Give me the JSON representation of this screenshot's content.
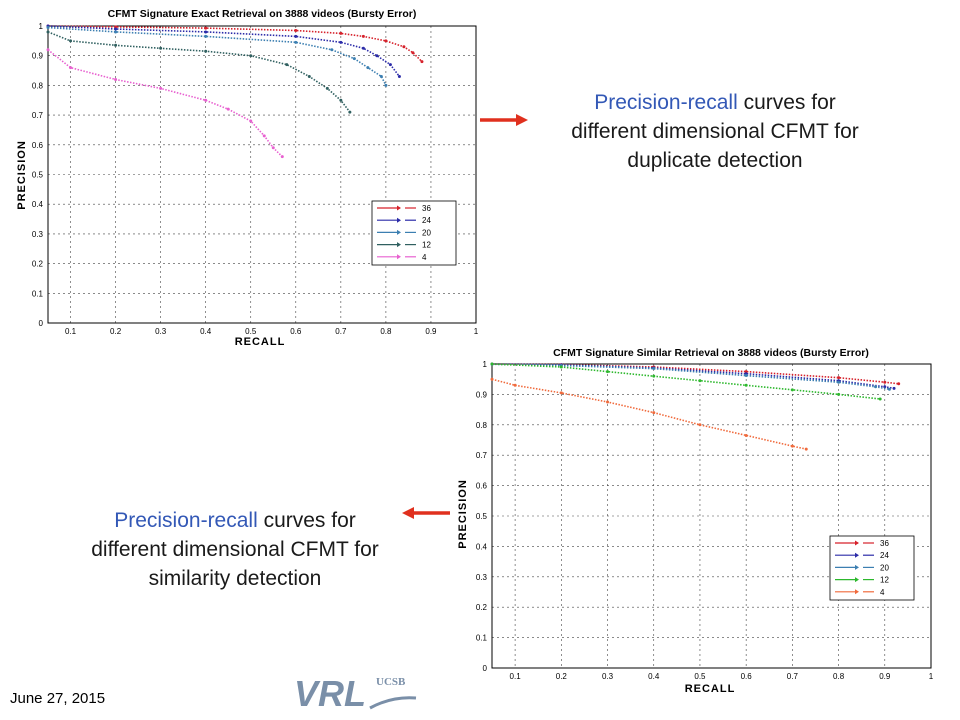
{
  "captions": {
    "top": {
      "highlight": "Precision-recall",
      "line1_rest": " curves for",
      "line2": "different dimensional CFMT for",
      "line3": "duplicate detection"
    },
    "bottom": {
      "highlight": "Precision-recall",
      "line1_rest": " curves for",
      "line2": "different dimensional CFMT for",
      "line3": "similarity detection"
    }
  },
  "footer": {
    "date": "June 27, 2015",
    "logo_main": "VRL",
    "logo_sub": "UCSB"
  },
  "colors": {
    "caption_highlight": "#3358b6",
    "arrow": "#e0301e",
    "logo": "#7a8fa8"
  },
  "chart_data": [
    {
      "type": "line",
      "title": "CFMT Signature Exact Retrieval on 3888 videos (Bursty Error)",
      "xlabel": "RECALL",
      "ylabel": "PRECISION",
      "xlim": [
        0.05,
        1
      ],
      "ylim": [
        0,
        1
      ],
      "xticks": [
        0.1,
        0.2,
        0.3,
        0.4,
        0.5,
        0.6,
        0.7,
        0.8,
        0.9,
        1
      ],
      "yticks": [
        0,
        0.1,
        0.2,
        0.3,
        0.4,
        0.5,
        0.6,
        0.7,
        0.8,
        0.9,
        1
      ],
      "grid": true,
      "legend_position": "lower-right",
      "series": [
        {
          "name": "36",
          "color": "#d6212b",
          "x": [
            0.05,
            0.2,
            0.4,
            0.6,
            0.7,
            0.75,
            0.8,
            0.84,
            0.86,
            0.88
          ],
          "y": [
            1.0,
            0.997,
            0.993,
            0.985,
            0.975,
            0.965,
            0.95,
            0.93,
            0.91,
            0.88
          ]
        },
        {
          "name": "24",
          "color": "#2b2ba8",
          "x": [
            0.05,
            0.2,
            0.4,
            0.6,
            0.7,
            0.75,
            0.78,
            0.81,
            0.83
          ],
          "y": [
            1.0,
            0.99,
            0.98,
            0.965,
            0.945,
            0.925,
            0.9,
            0.87,
            0.83
          ]
        },
        {
          "name": "20",
          "color": "#3c7fb1",
          "x": [
            0.05,
            0.2,
            0.4,
            0.6,
            0.68,
            0.73,
            0.76,
            0.79,
            0.8
          ],
          "y": [
            0.995,
            0.98,
            0.965,
            0.945,
            0.92,
            0.89,
            0.86,
            0.83,
            0.8
          ]
        },
        {
          "name": "12",
          "color": "#306060",
          "x": [
            0.05,
            0.1,
            0.2,
            0.3,
            0.4,
            0.5,
            0.58,
            0.63,
            0.67,
            0.7,
            0.72
          ],
          "y": [
            0.98,
            0.95,
            0.935,
            0.925,
            0.915,
            0.9,
            0.87,
            0.83,
            0.79,
            0.75,
            0.71
          ]
        },
        {
          "name": "4",
          "color": "#e860d0",
          "x": [
            0.05,
            0.1,
            0.2,
            0.3,
            0.4,
            0.45,
            0.5,
            0.53,
            0.55,
            0.57
          ],
          "y": [
            0.92,
            0.86,
            0.82,
            0.79,
            0.75,
            0.72,
            0.68,
            0.63,
            0.59,
            0.56
          ]
        }
      ]
    },
    {
      "type": "line",
      "title": "CFMT Signature Similar Retrieval on 3888 videos (Bursty Error)",
      "xlabel": "RECALL",
      "ylabel": "PRECISION",
      "xlim": [
        0.05,
        1
      ],
      "ylim": [
        0,
        1
      ],
      "xticks": [
        0.1,
        0.2,
        0.3,
        0.4,
        0.5,
        0.6,
        0.7,
        0.8,
        0.9,
        1
      ],
      "yticks": [
        0,
        0.1,
        0.2,
        0.3,
        0.4,
        0.5,
        0.6,
        0.7,
        0.8,
        0.9,
        1
      ],
      "grid": true,
      "legend_position": "lower-right",
      "series": [
        {
          "name": "36",
          "color": "#d6212b",
          "x": [
            0.05,
            0.2,
            0.4,
            0.6,
            0.8,
            0.9,
            0.93
          ],
          "y": [
            1.0,
            0.998,
            0.99,
            0.975,
            0.955,
            0.94,
            0.935
          ]
        },
        {
          "name": "24",
          "color": "#2b2ba8",
          "x": [
            0.05,
            0.2,
            0.4,
            0.6,
            0.8,
            0.9,
            0.92
          ],
          "y": [
            1.0,
            0.997,
            0.987,
            0.968,
            0.945,
            0.925,
            0.92
          ]
        },
        {
          "name": "20",
          "color": "#3c7fb1",
          "x": [
            0.05,
            0.2,
            0.4,
            0.6,
            0.8,
            0.88,
            0.91
          ],
          "y": [
            0.999,
            0.995,
            0.985,
            0.962,
            0.94,
            0.925,
            0.917
          ]
        },
        {
          "name": "12",
          "color": "#2db82d",
          "x": [
            0.05,
            0.2,
            0.3,
            0.4,
            0.5,
            0.6,
            0.7,
            0.8,
            0.89
          ],
          "y": [
            1.0,
            0.99,
            0.975,
            0.96,
            0.945,
            0.93,
            0.915,
            0.9,
            0.885
          ]
        },
        {
          "name": "4",
          "color": "#f06a3c",
          "x": [
            0.05,
            0.1,
            0.2,
            0.3,
            0.4,
            0.5,
            0.6,
            0.7,
            0.73
          ],
          "y": [
            0.95,
            0.93,
            0.905,
            0.875,
            0.84,
            0.8,
            0.765,
            0.73,
            0.72
          ]
        }
      ]
    }
  ]
}
